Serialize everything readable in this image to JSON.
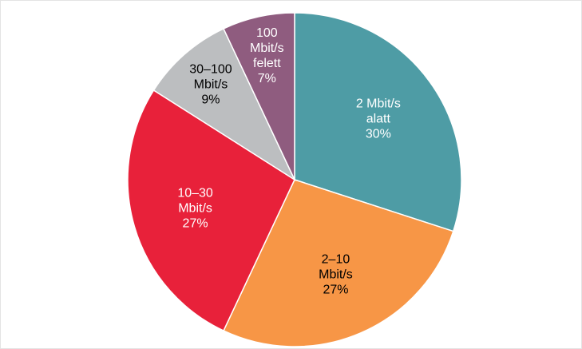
{
  "chart_data": {
    "type": "pie",
    "categories": [
      "2 Mbit/s alatt",
      "2–10 Mbit/s",
      "10–30 Mbit/s",
      "30–100 Mbit/s",
      "100 Mbit/s felett"
    ],
    "values": [
      30,
      27,
      27,
      9,
      7
    ],
    "value_labels": [
      "30%",
      "27%",
      "27%",
      "9%",
      "7%"
    ],
    "colors": [
      "#4e9ca5",
      "#f79646",
      "#e8213a",
      "#bcbec0",
      "#8f5c7f"
    ],
    "start_angle": 0,
    "direction": "clockwise"
  }
}
